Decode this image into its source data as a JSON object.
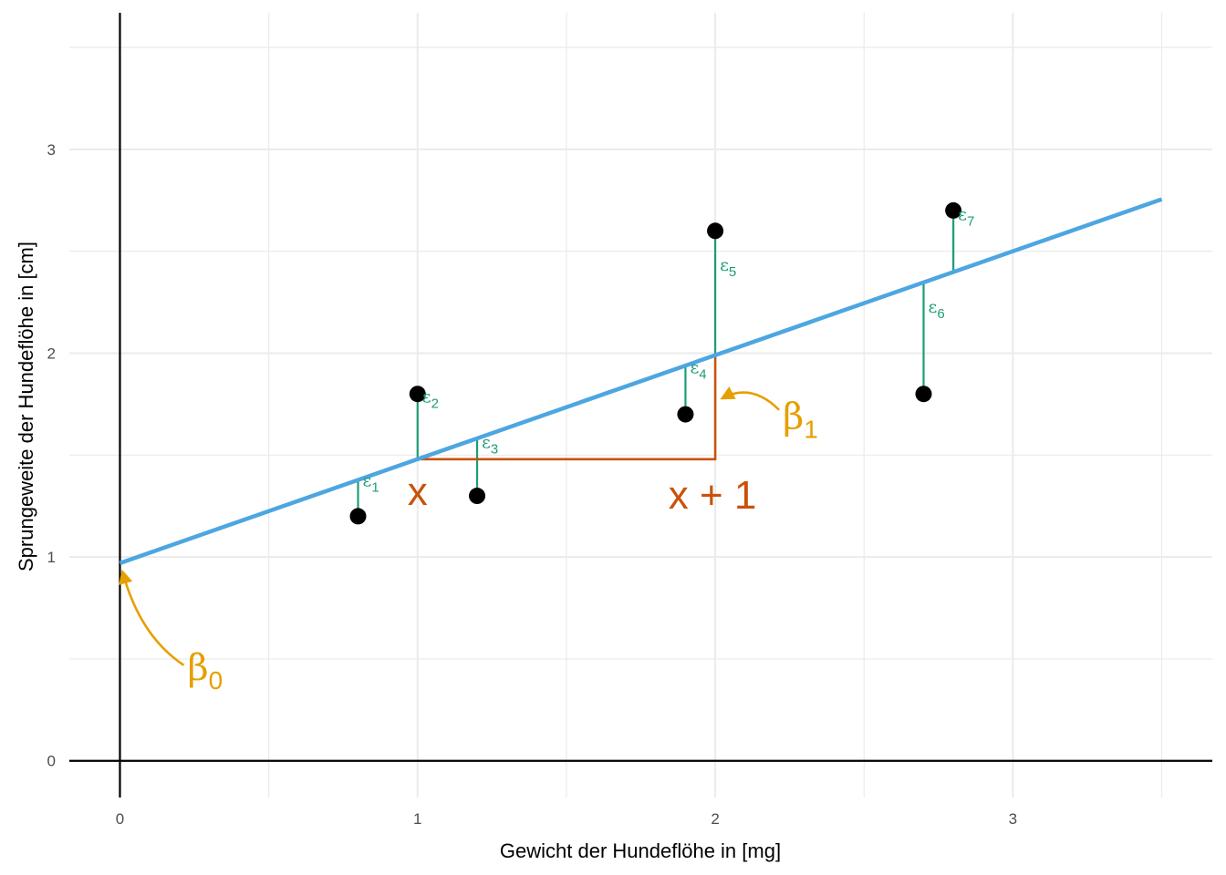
{
  "chart_data": {
    "type": "scatter",
    "xlabel": "Gewicht der Hundeflöhe in [mg]",
    "ylabel": "Sprungeweite der Hundeflöhe in [cm]",
    "xlim": [
      -0.17,
      3.67
    ],
    "ylim": [
      -0.18,
      3.67
    ],
    "x_ticks": [
      "0",
      "1",
      "2",
      "3"
    ],
    "y_ticks": [
      "0",
      "1",
      "2",
      "3"
    ],
    "grid": true,
    "points": [
      {
        "x": 0.8,
        "y": 1.2
      },
      {
        "x": 1.0,
        "y": 1.8
      },
      {
        "x": 1.2,
        "y": 1.3
      },
      {
        "x": 1.9,
        "y": 1.7
      },
      {
        "x": 2.0,
        "y": 2.6
      },
      {
        "x": 2.7,
        "y": 1.8
      },
      {
        "x": 2.8,
        "y": 2.7
      }
    ],
    "regression_line": {
      "intercept": 0.97,
      "slope": 0.51,
      "x_range": [
        0,
        3.5
      ],
      "color": "#4da6e0"
    },
    "residuals": {
      "color": "#1b9e77",
      "symbol": "ε",
      "labels": [
        "1",
        "2",
        "3",
        "4",
        "5",
        "6",
        "7"
      ]
    },
    "slope_triangle": {
      "x_start": 1.0,
      "x_end": 2.0,
      "color": "#c8530a"
    },
    "annotations": {
      "beta0": {
        "symbol": "β",
        "sub": "0",
        "color": "#e69f00"
      },
      "beta1": {
        "symbol": "β",
        "sub": "1",
        "color": "#e69f00"
      },
      "x_label": "x",
      "x1_label": "x + 1"
    }
  }
}
